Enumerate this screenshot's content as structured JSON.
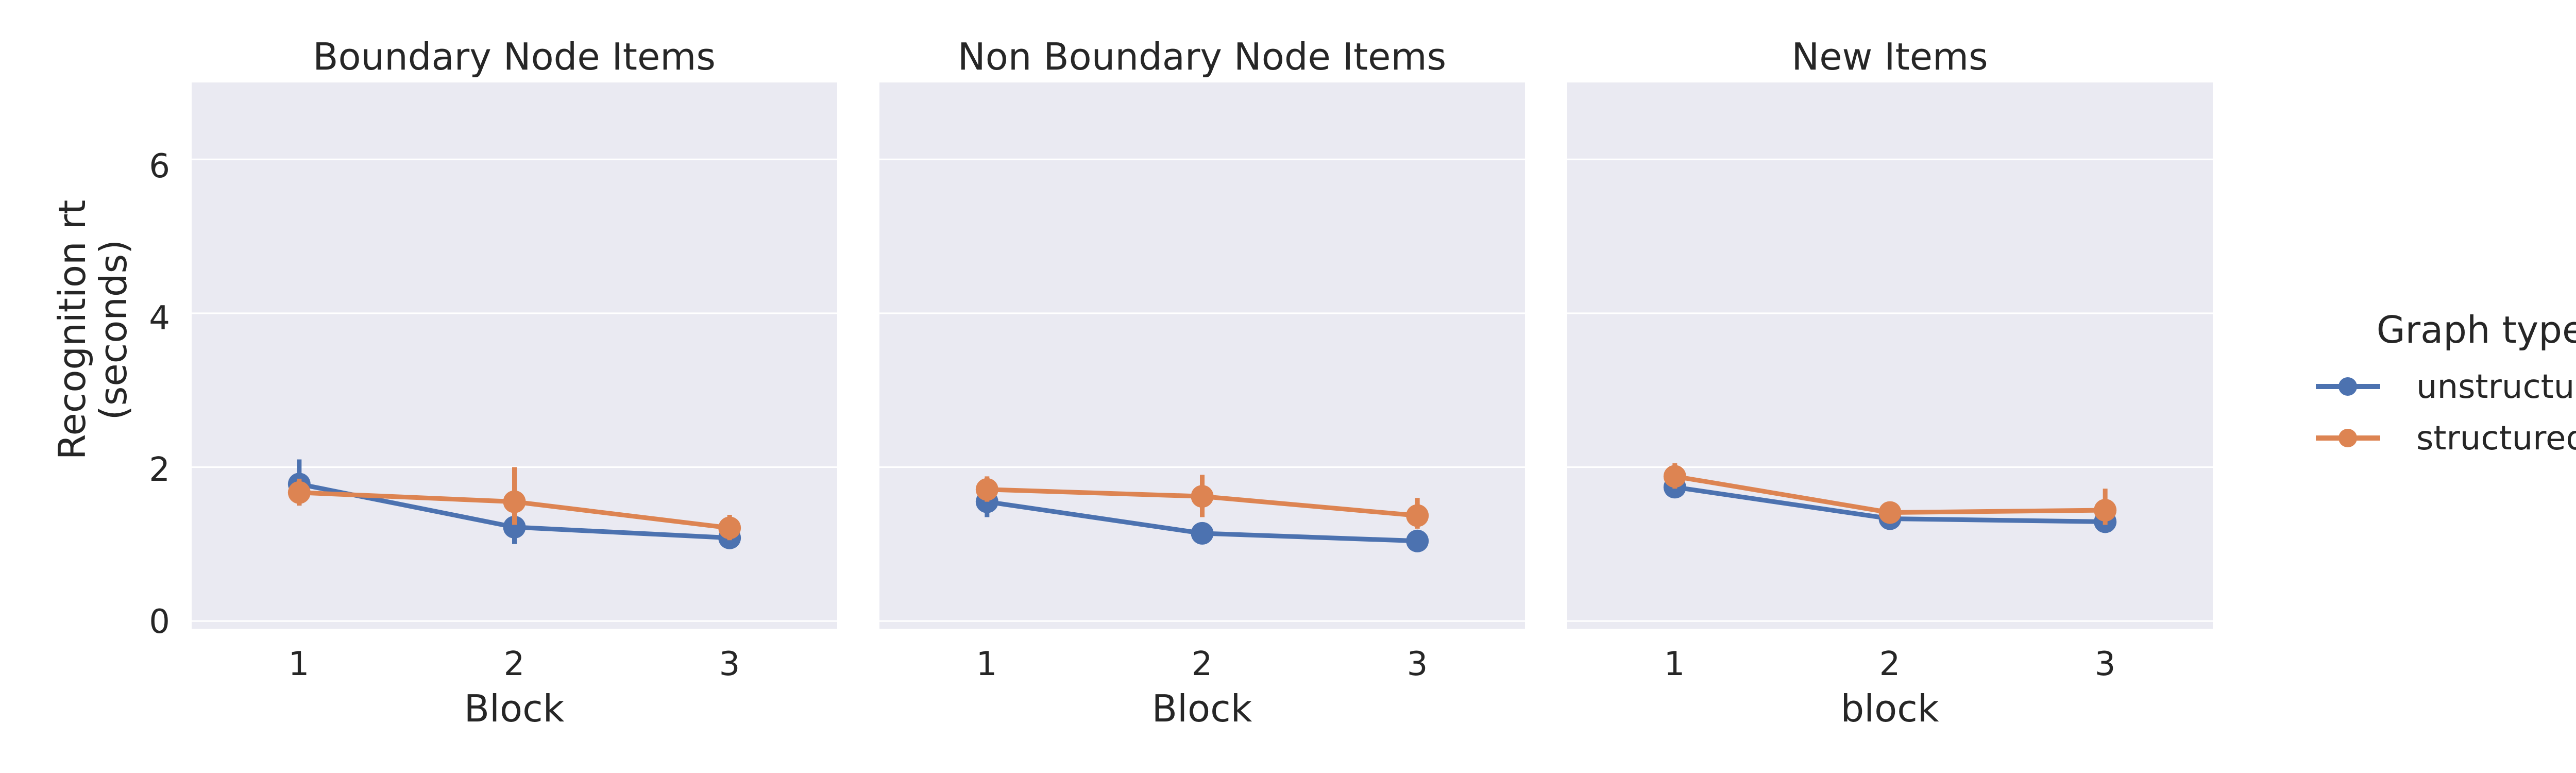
{
  "chart_data": {
    "type": "line",
    "y_label_lines": [
      "Recognition rt",
      "(seconds)"
    ],
    "ylim": [
      -0.1,
      7.0
    ],
    "yticks": [
      0,
      2,
      4,
      6
    ],
    "grid": true,
    "legend": {
      "title": "Graph type",
      "placement": "right",
      "entries": [
        "unstructured",
        "structured"
      ]
    },
    "colors": {
      "unstructured": "#4c72b0",
      "structured": "#dd8452",
      "panel_bg": "#eaeaf2",
      "grid": "#ffffff"
    },
    "panels": [
      {
        "title": "Boundary Node Items",
        "xlabel": "Block",
        "categories": [
          "1",
          "2",
          "3"
        ],
        "series": [
          {
            "name": "unstructured",
            "values": [
              1.78,
              1.22,
              1.08
            ],
            "ci": [
              [
                1.5,
                2.1
              ],
              [
                1.0,
                1.4
              ],
              [
                0.95,
                1.22
              ]
            ]
          },
          {
            "name": "structured",
            "values": [
              1.67,
              1.55,
              1.21
            ],
            "ci": [
              [
                1.5,
                1.85
              ],
              [
                1.25,
                2.0
              ],
              [
                1.05,
                1.38
              ]
            ]
          }
        ]
      },
      {
        "title": "Non Boundary Node Items",
        "xlabel": "Block",
        "categories": [
          "1",
          "2",
          "3"
        ],
        "series": [
          {
            "name": "unstructured",
            "values": [
              1.55,
              1.14,
              1.04
            ],
            "ci": [
              [
                1.35,
                1.75
              ],
              [
                1.0,
                1.28
              ],
              [
                0.9,
                1.18
              ]
            ]
          },
          {
            "name": "structured",
            "values": [
              1.71,
              1.62,
              1.37
            ],
            "ci": [
              [
                1.55,
                1.88
              ],
              [
                1.35,
                1.9
              ],
              [
                1.2,
                1.6
              ]
            ]
          }
        ]
      },
      {
        "title": "New Items",
        "xlabel": "block",
        "categories": [
          "1",
          "2",
          "3"
        ],
        "series": [
          {
            "name": "unstructured",
            "values": [
              1.74,
              1.33,
              1.29
            ],
            "ci": [
              [
                1.6,
                1.9
              ],
              [
                1.2,
                1.47
              ],
              [
                1.15,
                1.45
              ]
            ]
          },
          {
            "name": "structured",
            "values": [
              1.88,
              1.41,
              1.44
            ],
            "ci": [
              [
                1.72,
                2.05
              ],
              [
                1.28,
                1.55
              ],
              [
                1.25,
                1.72
              ]
            ]
          }
        ]
      }
    ]
  }
}
